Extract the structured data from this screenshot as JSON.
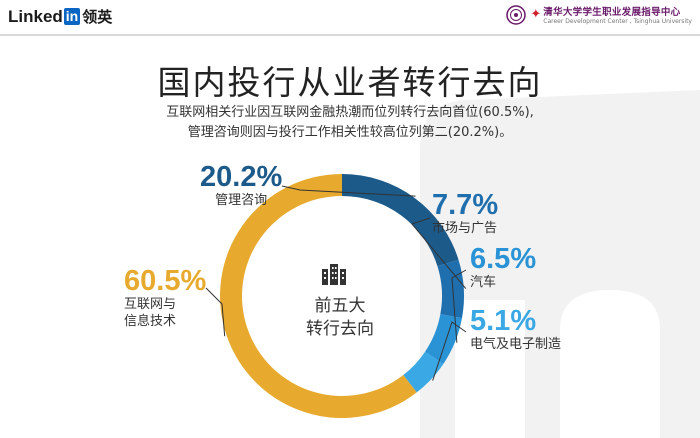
{
  "header": {
    "logo_text": "Linked",
    "logo_in": "in",
    "logo_cn": "领英",
    "university_cn": "清华大学学生职业发展指导中心",
    "university_en": "Career Development Center , Tsinghua University"
  },
  "title": "国内投行从业者转行去向",
  "subtitle": [
    "互联网相关行业因互联网金融热潮而位列转行去向首位(60.5%),",
    "管理咨询则因与投行工作相关性较高位列第二(20.2%)。"
  ],
  "center": {
    "line1": "前五大",
    "line2": "转行去向",
    "icon": "buildings-icon"
  },
  "chart_data": {
    "type": "pie",
    "donut": true,
    "slices": [
      {
        "label": "管理咨询",
        "value": 20.2,
        "display": "20.2%",
        "color": "#1c5a8a"
      },
      {
        "label": "市场与广告",
        "value": 7.7,
        "display": "7.7%",
        "color": "#1f6fae"
      },
      {
        "label": "汽车",
        "value": 6.5,
        "display": "6.5%",
        "color": "#2a93d5"
      },
      {
        "label": "电气及电子制造",
        "value": 5.1,
        "display": "5.1%",
        "color": "#3aa8e4"
      },
      {
        "label": "互联网与信息技术",
        "label_lines": [
          "互联网与",
          "信息技术"
        ],
        "value": 60.5,
        "display": "60.5%",
        "color": "#e7aa2e"
      }
    ]
  }
}
